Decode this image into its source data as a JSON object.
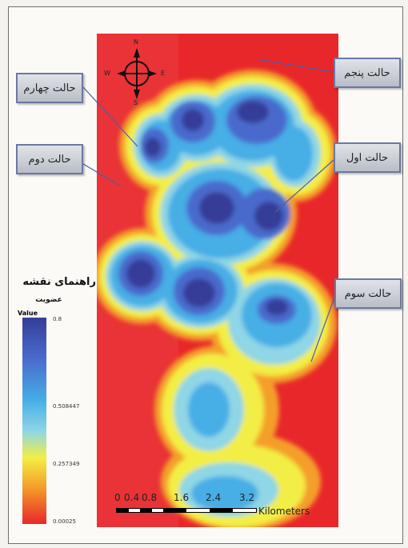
{
  "compass": {
    "n": "N",
    "s": "S",
    "e": "E",
    "w": "W"
  },
  "case_labels": {
    "case1": "حالت اول",
    "case2": "حالت دوم",
    "case3": "حالت سوم",
    "case4": "حالت چهارم",
    "case5": "حالت پنجم"
  },
  "legend": {
    "title": "راهنمای نقشه",
    "subtitle": "عضویت",
    "value_label": "Value",
    "ticks": [
      "0.8",
      "0.508447",
      "0.257349",
      "0.00025"
    ]
  },
  "scale": {
    "ticks": [
      "0",
      "0.4",
      "0.8",
      "1.6",
      "2.4",
      "3.2"
    ],
    "unit": "Kilometers"
  },
  "colors": {
    "background_red": "#e8272a",
    "orange": "#f49f2a",
    "yellow": "#f3ee44",
    "light_blue": "#8fd6e6",
    "cyan": "#46aee6",
    "blue": "#4a6bcc",
    "dark_blue": "#343e98"
  }
}
